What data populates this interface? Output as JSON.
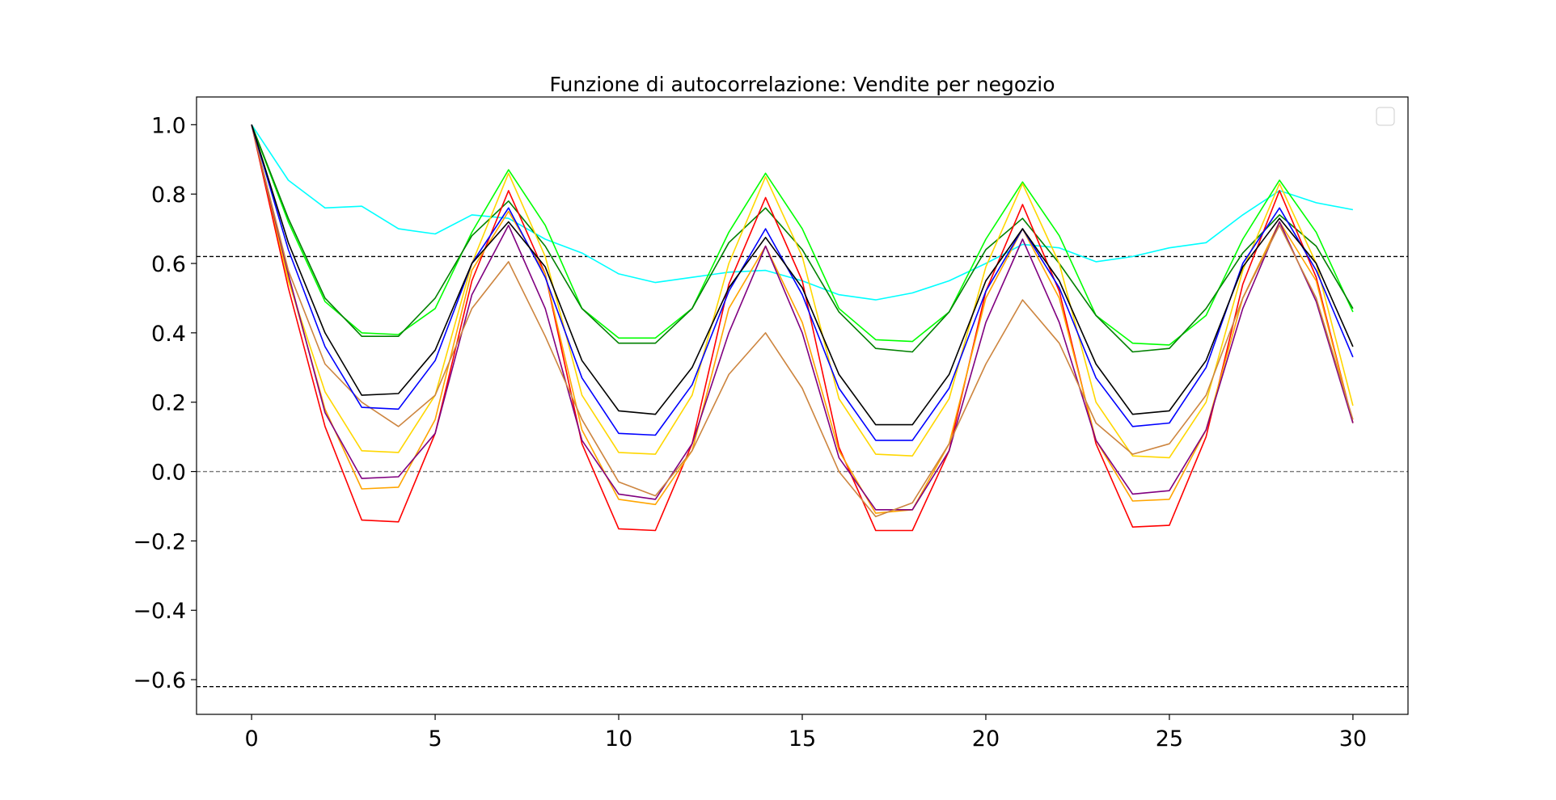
{
  "chart_data": {
    "type": "line",
    "title": "Funzione di autocorrelazione: Vendite per negozio",
    "xlabel": "",
    "ylabel": "",
    "xlim": [
      -1.5,
      31.5
    ],
    "ylim": [
      -0.7,
      1.08
    ],
    "x_ticks": [
      "0",
      "5",
      "10",
      "15",
      "20",
      "25",
      "30"
    ],
    "y_ticks": [
      "1.0",
      "0.8",
      "0.6",
      "0.4",
      "0.2",
      "0.0",
      "−0.2",
      "−0.4",
      "−0.6"
    ],
    "grid": false,
    "legend": "top-right (empty)",
    "reference_lines": [
      {
        "y": 0.62,
        "style": "dashed",
        "color": "#000000"
      },
      {
        "y": 0.0,
        "style": "dashed",
        "color": "#777777"
      },
      {
        "y": -0.62,
        "style": "dashed",
        "color": "#000000"
      }
    ],
    "x": [
      0,
      1,
      2,
      3,
      4,
      5,
      6,
      7,
      8,
      9,
      10,
      11,
      12,
      13,
      14,
      15,
      16,
      17,
      18,
      19,
      20,
      21,
      22,
      23,
      24,
      25,
      26,
      27,
      28,
      29,
      30
    ],
    "series": [
      {
        "color": "#00ffff",
        "values": [
          1.0,
          0.84,
          0.76,
          0.765,
          0.7,
          0.685,
          0.74,
          0.73,
          0.67,
          0.63,
          0.57,
          0.545,
          0.56,
          0.575,
          0.58,
          0.55,
          0.51,
          0.495,
          0.515,
          0.55,
          0.6,
          0.655,
          0.645,
          0.605,
          0.62,
          0.645,
          0.66,
          0.74,
          0.81,
          0.775,
          0.755
        ]
      },
      {
        "color": "#00ff00",
        "values": [
          1.0,
          0.72,
          0.49,
          0.4,
          0.395,
          0.47,
          0.69,
          0.87,
          0.71,
          0.47,
          0.385,
          0.385,
          0.47,
          0.69,
          0.86,
          0.7,
          0.47,
          0.38,
          0.375,
          0.46,
          0.67,
          0.835,
          0.68,
          0.45,
          0.37,
          0.365,
          0.45,
          0.67,
          0.84,
          0.69,
          0.46
        ]
      },
      {
        "color": "#008000",
        "values": [
          1.0,
          0.73,
          0.5,
          0.39,
          0.39,
          0.5,
          0.68,
          0.78,
          0.65,
          0.47,
          0.37,
          0.37,
          0.47,
          0.66,
          0.76,
          0.64,
          0.46,
          0.355,
          0.345,
          0.46,
          0.64,
          0.73,
          0.6,
          0.45,
          0.345,
          0.355,
          0.47,
          0.63,
          0.74,
          0.65,
          0.47
        ]
      },
      {
        "color": "#ffd700",
        "values": [
          1.0,
          0.55,
          0.23,
          0.06,
          0.055,
          0.22,
          0.6,
          0.86,
          0.62,
          0.22,
          0.055,
          0.05,
          0.22,
          0.6,
          0.85,
          0.62,
          0.21,
          0.05,
          0.045,
          0.21,
          0.59,
          0.83,
          0.6,
          0.2,
          0.045,
          0.04,
          0.2,
          0.58,
          0.83,
          0.6,
          0.19
        ]
      },
      {
        "color": "#ff0000",
        "values": [
          1.0,
          0.53,
          0.13,
          -0.14,
          -0.145,
          0.11,
          0.55,
          0.81,
          0.57,
          0.08,
          -0.165,
          -0.17,
          0.08,
          0.54,
          0.79,
          0.55,
          0.07,
          -0.17,
          -0.17,
          0.06,
          0.52,
          0.77,
          0.52,
          0.08,
          -0.16,
          -0.155,
          0.1,
          0.54,
          0.81,
          0.56,
          0.14
        ]
      },
      {
        "color": "#ffa500",
        "values": [
          1.0,
          0.56,
          0.18,
          -0.05,
          -0.045,
          0.15,
          0.58,
          0.75,
          0.57,
          0.12,
          -0.08,
          -0.095,
          0.06,
          0.47,
          0.65,
          0.43,
          0.06,
          -0.12,
          -0.11,
          0.08,
          0.5,
          0.7,
          0.5,
          0.09,
          -0.085,
          -0.08,
          0.12,
          0.5,
          0.72,
          0.55,
          0.14
        ]
      },
      {
        "color": "#800080",
        "values": [
          1.0,
          0.57,
          0.17,
          -0.02,
          -0.015,
          0.11,
          0.51,
          0.71,
          0.47,
          0.09,
          -0.065,
          -0.08,
          0.08,
          0.4,
          0.65,
          0.4,
          0.04,
          -0.11,
          -0.11,
          0.06,
          0.43,
          0.67,
          0.43,
          0.09,
          -0.065,
          -0.055,
          0.12,
          0.47,
          0.72,
          0.49,
          0.14
        ]
      },
      {
        "color": "#cd853f",
        "values": [
          1.0,
          0.58,
          0.31,
          0.2,
          0.13,
          0.22,
          0.47,
          0.605,
          0.39,
          0.15,
          -0.03,
          -0.07,
          0.06,
          0.28,
          0.4,
          0.24,
          0.0,
          -0.13,
          -0.09,
          0.08,
          0.31,
          0.495,
          0.37,
          0.14,
          0.05,
          0.08,
          0.22,
          0.5,
          0.71,
          0.5,
          0.15
        ]
      },
      {
        "color": "#0000ff",
        "values": [
          1.0,
          0.64,
          0.36,
          0.185,
          0.18,
          0.32,
          0.6,
          0.76,
          0.56,
          0.27,
          0.11,
          0.105,
          0.25,
          0.52,
          0.7,
          0.51,
          0.24,
          0.09,
          0.09,
          0.24,
          0.52,
          0.7,
          0.53,
          0.27,
          0.13,
          0.14,
          0.3,
          0.6,
          0.76,
          0.58,
          0.33
        ]
      },
      {
        "color": "#000000",
        "values": [
          1.0,
          0.66,
          0.4,
          0.22,
          0.225,
          0.35,
          0.6,
          0.72,
          0.59,
          0.32,
          0.175,
          0.165,
          0.3,
          0.53,
          0.675,
          0.53,
          0.28,
          0.135,
          0.135,
          0.28,
          0.55,
          0.7,
          0.55,
          0.31,
          0.165,
          0.175,
          0.32,
          0.59,
          0.73,
          0.6,
          0.36
        ]
      }
    ]
  }
}
